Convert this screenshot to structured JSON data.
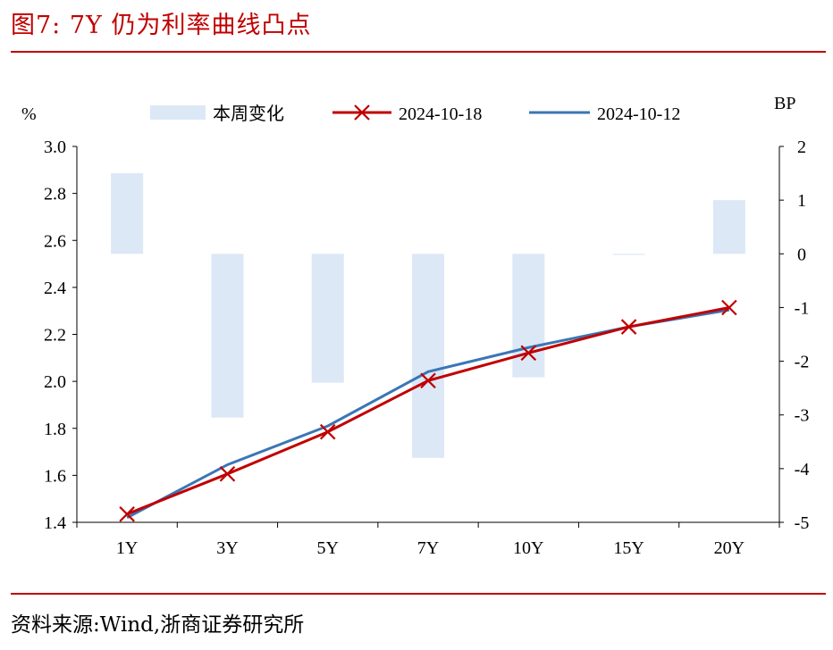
{
  "header": {
    "title": "图7:  7Y 仍为利率曲线凸点"
  },
  "footer": {
    "source": "资料来源:Wind,浙商证券研究所"
  },
  "colors": {
    "accent": "#c00000",
    "bar": "#dce8f6",
    "line1": "#c00000",
    "line2": "#3a76b5"
  },
  "chart_data": {
    "type": "line",
    "title": "7Y 仍为利率曲线凸点",
    "categories": [
      "1Y",
      "3Y",
      "5Y",
      "7Y",
      "10Y",
      "15Y",
      "20Y"
    ],
    "y_left": {
      "label": "%",
      "lim": [
        1.4,
        3.0
      ],
      "ticks": [
        "3.0",
        "2.8",
        "2.6",
        "2.4",
        "2.2",
        "2.0",
        "1.8",
        "1.6",
        "1.4"
      ],
      "tick_values": [
        3.0,
        2.8,
        2.6,
        2.4,
        2.2,
        2.0,
        1.8,
        1.6,
        1.4
      ]
    },
    "y_right": {
      "label": "BP",
      "lim": [
        -5,
        2
      ],
      "ticks": [
        "2",
        "1",
        "0",
        "-1",
        "-2",
        "-3",
        "-4",
        "-5"
      ],
      "tick_values": [
        2,
        1,
        0,
        -1,
        -2,
        -3,
        -4,
        -5
      ]
    },
    "series": [
      {
        "name": "本周变化",
        "type": "bar",
        "axis": "right",
        "values": [
          1.5,
          -3.05,
          -2.4,
          -3.8,
          -2.3,
          -0.02,
          1.0
        ]
      },
      {
        "name": "2024-10-18",
        "type": "line",
        "axis": "left",
        "marker": "x",
        "values": [
          1.435,
          1.606,
          1.785,
          2.003,
          2.121,
          2.232,
          2.314
        ]
      },
      {
        "name": "2024-10-12",
        "type": "line",
        "axis": "left",
        "marker": "none",
        "values": [
          1.42,
          1.645,
          1.81,
          2.041,
          2.144,
          2.232,
          2.304
        ]
      }
    ],
    "legend": {
      "position": "top-center",
      "entries": [
        "本周变化",
        "2024-10-18",
        "2024-10-12"
      ]
    },
    "grid": false
  }
}
